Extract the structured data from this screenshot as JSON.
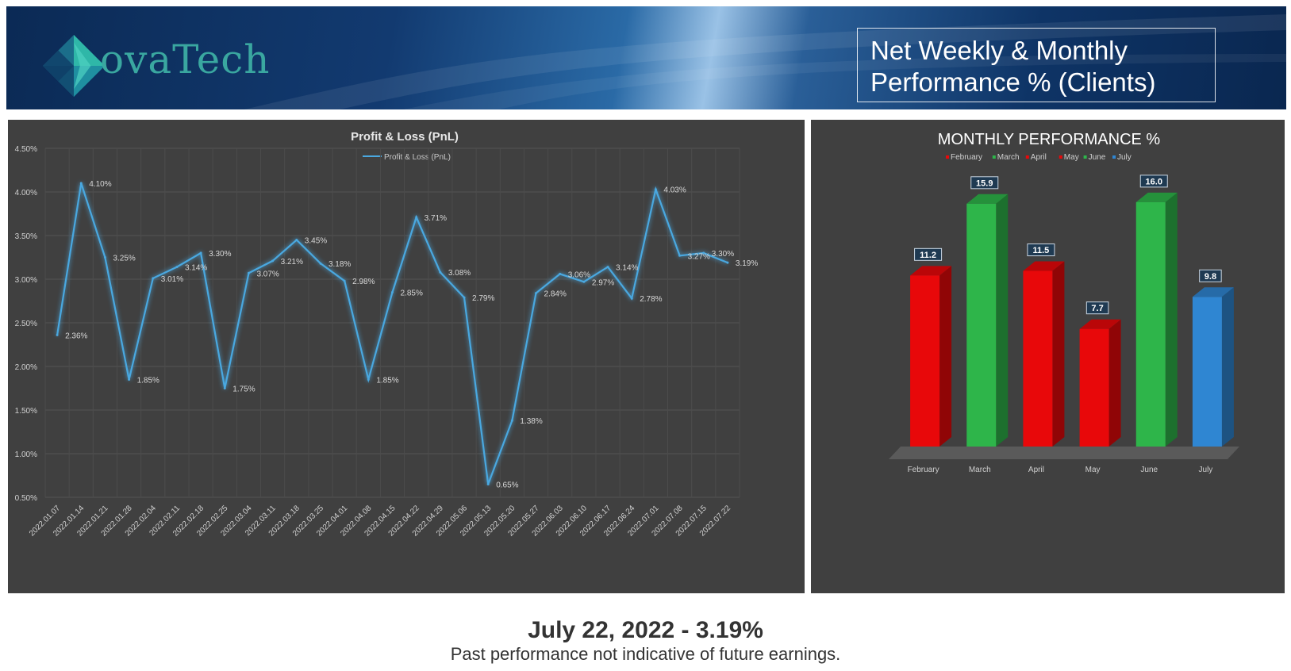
{
  "header": {
    "logo_text": "ovaTech",
    "title_line1": "Net Weekly & Monthly",
    "title_line2": "Performance % (Clients)"
  },
  "colors": {
    "line": "#4aa8e0",
    "red": "#e8080a",
    "green": "#2eb54a",
    "blue": "#2f86d2",
    "panel": "#404040"
  },
  "chart_data": [
    {
      "type": "line",
      "title": "Profit & Loss (PnL)",
      "legend": "top",
      "grid": true,
      "ylim": [
        0.005,
        0.045
      ],
      "yticks": [
        "0.50%",
        "1.00%",
        "1.50%",
        "2.00%",
        "2.50%",
        "3.00%",
        "3.50%",
        "4.00%",
        "4.50%"
      ],
      "x": [
        "2022.01.07",
        "2022.01.14",
        "2022.01.21",
        "2022.01.28",
        "2022.02.04",
        "2022.02.11",
        "2022.02.18",
        "2022.02.25",
        "2022.03.04",
        "2022.03.11",
        "2022.03.18",
        "2022.03.25",
        "2022.04.01",
        "2022.04.08",
        "2022.04.15",
        "2022.04.22",
        "2022.04.29",
        "2022.05.06",
        "2022.05.13",
        "2022.05.20",
        "2022.05.27",
        "2022.06.03",
        "2022.06.10",
        "2022.06.17",
        "2022.06.24",
        "2022.07.01",
        "2022.07.08",
        "2022.07.15",
        "2022.07.22"
      ],
      "series": [
        {
          "name": "Profit & Loss (PnL)",
          "values": [
            0.0236,
            0.041,
            0.0325,
            0.0185,
            0.0301,
            0.0314,
            0.033,
            0.0175,
            0.0307,
            0.0321,
            0.0345,
            0.0318,
            0.0298,
            0.0185,
            0.0285,
            0.0371,
            0.0308,
            0.0279,
            0.0065,
            0.0138,
            0.0284,
            0.0306,
            0.0297,
            0.0314,
            0.0278,
            0.0403,
            0.0327,
            0.033,
            0.0319
          ],
          "labels": [
            "2.36%",
            "4.10%",
            "3.25%",
            "1.85%",
            "3.01%",
            "3.14%",
            "3.30%",
            "1.75%",
            "3.07%",
            "3.21%",
            "3.45%",
            "3.18%",
            "2.98%",
            "1.85%",
            "2.85%",
            "3.71%",
            "3.08%",
            "2.79%",
            "0.65%",
            "1.38%",
            "2.84%",
            "3.06%",
            "2.97%",
            "3.14%",
            "2.78%",
            "4.03%",
            "3.27%",
            "3.30%",
            "3.19%"
          ]
        }
      ]
    },
    {
      "type": "bar",
      "title": "MONTHLY PERFORMANCE %",
      "legend": "top",
      "categories": [
        "February",
        "March",
        "April",
        "May",
        "June",
        "July"
      ],
      "values": [
        11.2,
        15.9,
        11.5,
        7.7,
        16.0,
        9.8
      ],
      "value_labels": [
        "11.2",
        "15.9",
        "11.5",
        "7.7",
        "16.0",
        "9.8"
      ],
      "colors": [
        "#e8080a",
        "#2eb54a",
        "#e8080a",
        "#e8080a",
        "#2eb54a",
        "#2f86d2"
      ],
      "ylim": [
        0,
        17.5
      ]
    }
  ],
  "footer": {
    "headline": "July 22, 2022 - 3.19%",
    "disclaimer": "Past performance not indicative of future earnings."
  }
}
